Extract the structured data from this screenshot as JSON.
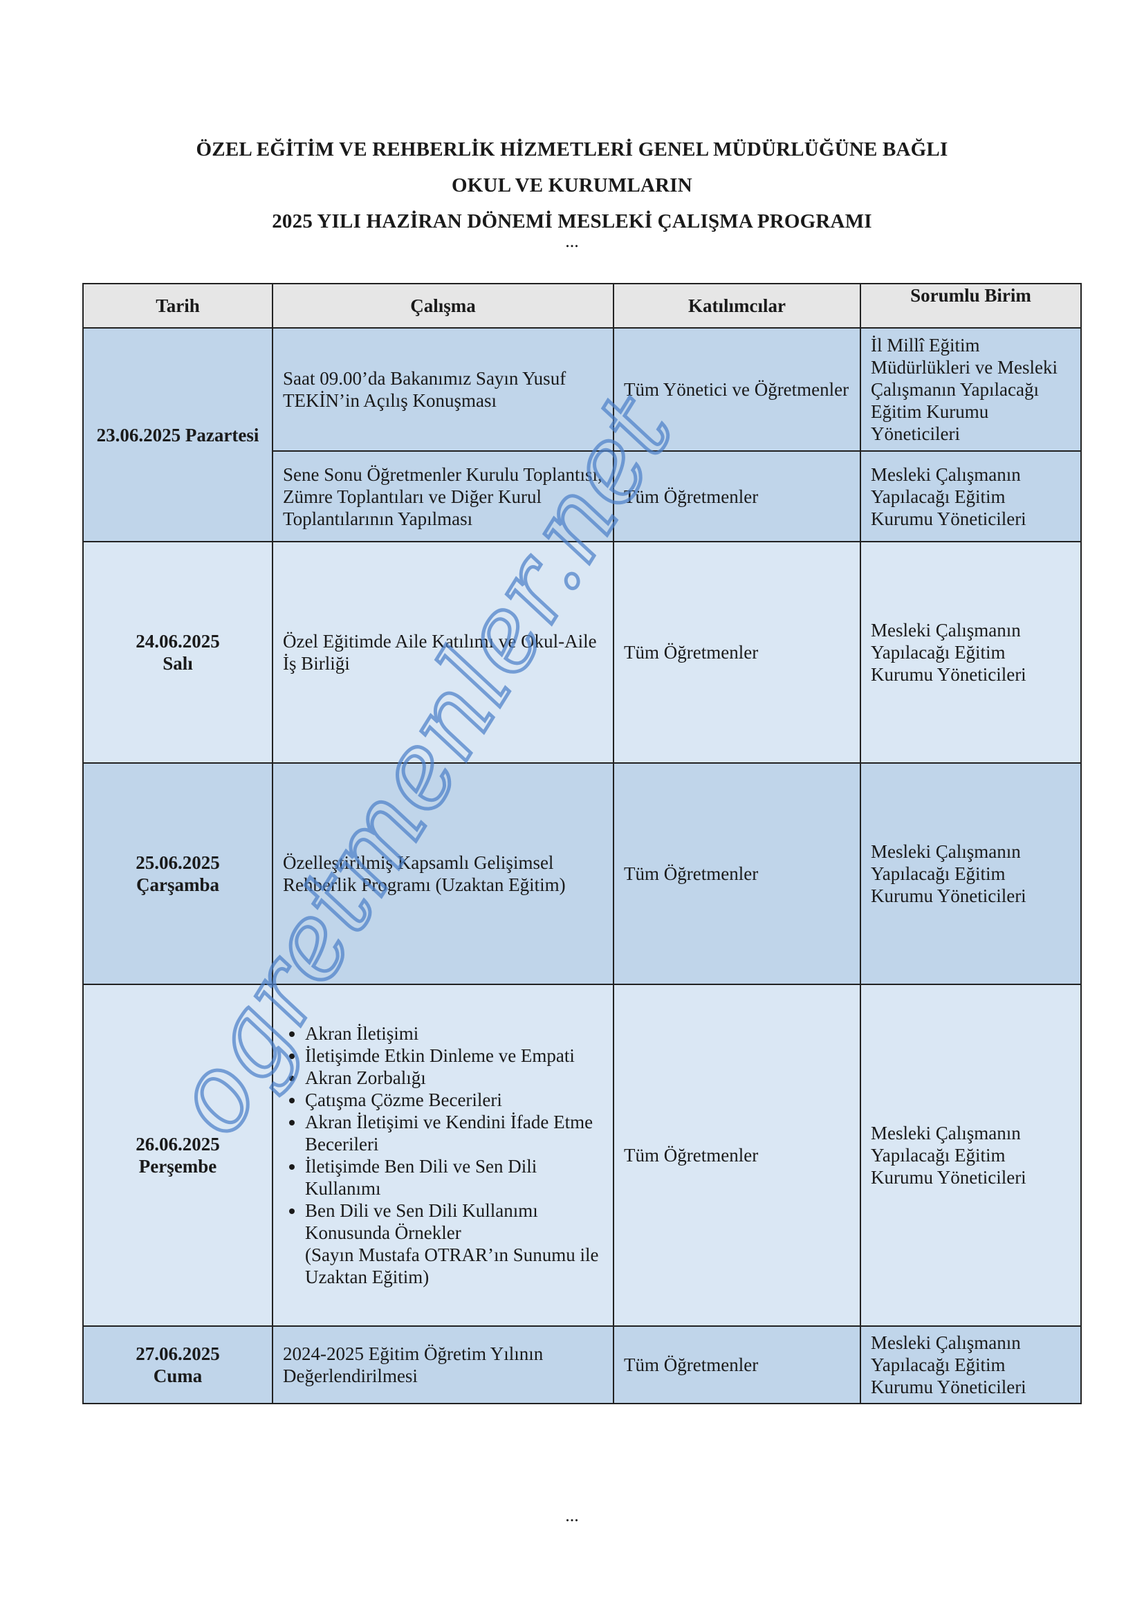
{
  "header": {
    "line1": "ÖZEL EĞİTİM VE REHBERLİK HİZMETLERİ GENEL MÜDÜRLÜĞÜNE BAĞLI",
    "line2": "OKUL VE KURUMLARIN",
    "line3": "2025 YILI HAZİRAN DÖNEMİ MESLEKİ ÇALIŞMA PROGRAMI",
    "ellipsis": "..."
  },
  "table": {
    "headers": {
      "tarih": "Tarih",
      "calisma": "Çalışma",
      "katilimcilar": "Katılımcılar",
      "sorumlu": "Sorumlu Birim"
    },
    "rows": [
      {
        "date": "23.06.2025 Pazartesi",
        "items": [
          {
            "calisma": "Saat 09.00’da Bakanımız Sayın Yusuf TEKİN’in Açılış Konuşması",
            "katilimcilar": "Tüm Yönetici ve Öğretmenler",
            "sorumlu": "İl Millî Eğitim Müdürlükleri ve Mesleki Çalışmanın Yapılacağı Eğitim Kurumu Yöneticileri"
          },
          {
            "calisma": "Sene Sonu Öğretmenler Kurulu Toplantısı, Zümre Toplantıları ve Diğer Kurul Toplantılarının Yapılması",
            "katilimcilar": "Tüm Öğretmenler",
            "sorumlu": "Mesleki Çalışmanın Yapılacağı Eğitim Kurumu Yöneticileri"
          }
        ]
      },
      {
        "date_line1": "24.06.2025",
        "date_line2": "Salı",
        "calisma": "Özel Eğitimde Aile Katılımı ve Okul-Aile İş Birliği",
        "katilimcilar": "Tüm Öğretmenler",
        "sorumlu": "Mesleki Çalışmanın Yapılacağı Eğitim Kurumu Yöneticileri"
      },
      {
        "date_line1": "25.06.2025",
        "date_line2": "Çarşamba",
        "calisma": "Özelleştirilmiş Kapsamlı Gelişimsel Rehberlik Programı (Uzaktan Eğitim)",
        "katilimcilar": "Tüm Öğretmenler",
        "sorumlu": "Mesleki Çalışmanın Yapılacağı Eğitim Kurumu Yöneticileri"
      },
      {
        "date_line1": "26.06.2025",
        "date_line2": "Perşembe",
        "bullets": [
          "Akran İletişimi",
          "İletişimde Etkin Dinleme ve Empati",
          "Akran Zorbalığı",
          "Çatışma Çözme Becerileri",
          "Akran İletişimi ve Kendini İfade Etme Becerileri",
          "İletişimde Ben Dili ve Sen Dili Kullanımı",
          "Ben Dili ve Sen Dili Kullanımı Konusunda Örnekler"
        ],
        "note": "(Sayın Mustafa OTRAR’ın Sunumu ile Uzaktan Eğitim)",
        "katilimcilar": "Tüm Öğretmenler",
        "sorumlu": "Mesleki Çalışmanın Yapılacağı Eğitim Kurumu Yöneticileri"
      },
      {
        "date_line1": "27.06.2025",
        "date_line2": "Cuma",
        "calisma": "2024-2025 Eğitim Öğretim Yılının Değerlendirilmesi",
        "katilimcilar": "Tüm Öğretmenler",
        "sorumlu": "Mesleki Çalışmanın Yapılacağı Eğitim Kurumu Yöneticileri"
      }
    ]
  },
  "watermark": {
    "text": "ogretmenler.net",
    "color": "#4a7fc8"
  },
  "colors": {
    "row_dark": "#c0d5ea",
    "row_light": "#dae7f4",
    "header_bg": "#e6e6e6"
  }
}
